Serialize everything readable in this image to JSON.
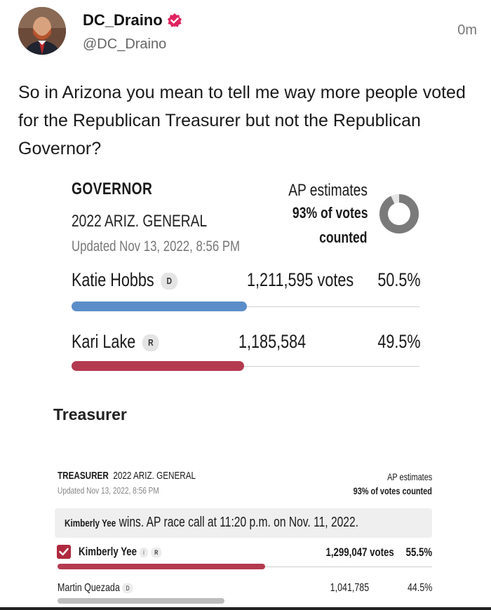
{
  "tweet": {
    "author_name": "DC_Draino",
    "handle": "@DC_Draino",
    "time": "0m",
    "text": "So in Arizona you mean to tell me way more people voted for the Republican Treasurer but not the Republican Governor?"
  },
  "governor": {
    "title": "GOVERNOR",
    "race": "2022 ARIZ. GENERAL",
    "updated": "Updated Nov 13, 2022, 8:56 PM",
    "ap_line1": "AP estimates",
    "ap_line2": "93% of votes",
    "ap_line3": "counted",
    "counted_fraction": 0.93,
    "candidates": [
      {
        "name": "Katie Hobbs",
        "party": "D",
        "votes": "1,211,595 votes",
        "pct": "50.5%",
        "share": 0.505,
        "color": "#5b8ec9"
      },
      {
        "name": "Kari Lake",
        "party": "R",
        "votes": "1,185,584",
        "pct": "49.5%",
        "share": 0.495,
        "color": "#b43a50"
      }
    ]
  },
  "treasurer": {
    "heading": "Treasurer",
    "title": "TREASURER",
    "race": "2022 ARIZ. GENERAL",
    "updated": "Updated Nov 13, 2022, 8:56 PM",
    "ap_line1": "AP estimates",
    "ap_line2": "93% of votes counted",
    "call_name": "Kimberly Yee",
    "call_text": "wins. AP race call at 11:20 p.m. on Nov. 11, 2022.",
    "candidates": [
      {
        "name": "Kimberly Yee",
        "party": "R",
        "votes": "1,299,047 votes",
        "pct": "55.5%",
        "share": 0.555,
        "color": "#b43a50"
      },
      {
        "name": "Martin Quezada",
        "party": "D",
        "votes": "1,041,785",
        "pct": "44.5%",
        "share": 0.445,
        "color": "#bdbdbd"
      }
    ]
  }
}
